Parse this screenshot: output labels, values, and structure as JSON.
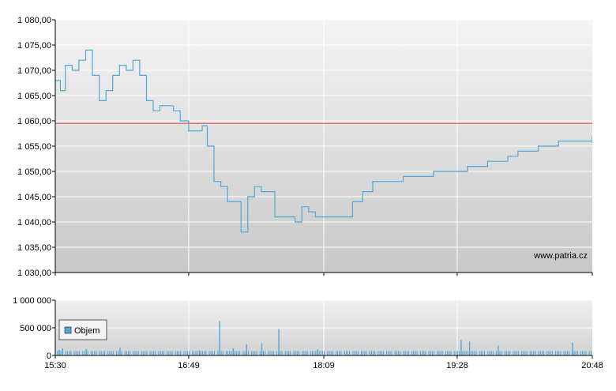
{
  "chart_data": [
    {
      "type": "line",
      "title": "",
      "xlabel": "",
      "ylabel": "",
      "ylim": [
        1030,
        1080
      ],
      "ytick_labels": [
        "1 030,00",
        "1 035,00",
        "1 040,00",
        "1 045,00",
        "1 050,00",
        "1 055,00",
        "1 060,00",
        "1 065,00",
        "1 070,00",
        "1 075,00",
        "1 080,00"
      ],
      "yticks": [
        1030,
        1035,
        1040,
        1045,
        1050,
        1055,
        1060,
        1065,
        1070,
        1075,
        1080
      ],
      "reference_line": {
        "value": 1059.5,
        "color": "#e05050"
      },
      "line_color": "#4fa8d8",
      "watermark": "www.patria.cz",
      "series": [
        {
          "x": [
            "15:30",
            "15:33",
            "15:36",
            "15:40",
            "15:44",
            "15:48",
            "15:52",
            "15:56",
            "16:00",
            "16:04",
            "16:08",
            "16:12",
            "16:16",
            "16:20",
            "16:24",
            "16:28",
            "16:32",
            "16:36",
            "16:40",
            "16:44",
            "16:49",
            "16:53",
            "16:57",
            "17:00",
            "17:04",
            "17:08",
            "17:12",
            "17:16",
            "17:20",
            "17:24",
            "17:28",
            "17:32",
            "17:36",
            "17:40",
            "17:44",
            "17:48",
            "17:52",
            "17:56",
            "18:00",
            "18:04",
            "18:09",
            "18:14",
            "18:20",
            "18:26",
            "18:32",
            "18:38",
            "18:44",
            "18:50",
            "18:56",
            "19:02",
            "19:08",
            "19:14",
            "19:20",
            "19:28",
            "19:34",
            "19:40",
            "19:46",
            "19:52",
            "19:58",
            "20:04",
            "20:10",
            "20:16",
            "20:22",
            "20:28",
            "20:34",
            "20:40",
            "20:48"
          ],
          "values": [
            1068,
            1066,
            1071,
            1070,
            1072,
            1074,
            1069,
            1064,
            1066,
            1069,
            1071,
            1070,
            1072,
            1069,
            1064,
            1062,
            1063,
            1063,
            1062,
            1060,
            1058,
            1058,
            1059,
            1055,
            1048,
            1047,
            1044,
            1044,
            1038,
            1045,
            1047,
            1046,
            1046,
            1041,
            1041,
            1041,
            1040,
            1043,
            1042,
            1041,
            1041,
            1041,
            1041,
            1044,
            1046,
            1048,
            1048,
            1048,
            1049,
            1049,
            1049,
            1050,
            1050,
            1050,
            1051,
            1051,
            1052,
            1052,
            1053,
            1054,
            1054,
            1055,
            1055,
            1056,
            1056,
            1056,
            1057
          ]
        }
      ]
    },
    {
      "type": "bar",
      "title": "",
      "xlabel": "",
      "ylabel": "",
      "ylim": [
        0,
        1000000
      ],
      "ytick_labels": [
        "0",
        "500 000",
        "1 000 000"
      ],
      "yticks": [
        0,
        500000,
        1000000
      ],
      "bar_color": "#4fa8d8",
      "legend": {
        "label": "Objem",
        "placement": "top-left"
      },
      "baseline_volume": 80000,
      "spikes": [
        {
          "time": "15:32",
          "value": 100000
        },
        {
          "time": "15:34",
          "value": 130000
        },
        {
          "time": "15:48",
          "value": 120000
        },
        {
          "time": "16:08",
          "value": 140000
        },
        {
          "time": "16:55",
          "value": 90000
        },
        {
          "time": "17:07",
          "value": 620000
        },
        {
          "time": "17:15",
          "value": 130000
        },
        {
          "time": "17:23",
          "value": 200000
        },
        {
          "time": "17:32",
          "value": 220000
        },
        {
          "time": "17:42",
          "value": 480000
        },
        {
          "time": "18:05",
          "value": 110000
        },
        {
          "time": "19:30",
          "value": 280000
        },
        {
          "time": "19:35",
          "value": 250000
        },
        {
          "time": "19:52",
          "value": 180000
        },
        {
          "time": "20:36",
          "value": 230000
        }
      ]
    }
  ],
  "x_axis": {
    "range": [
      "15:30",
      "20:48"
    ],
    "tick_labels": [
      "15:30",
      "16:49",
      "18:09",
      "19:28",
      "20:48"
    ]
  }
}
